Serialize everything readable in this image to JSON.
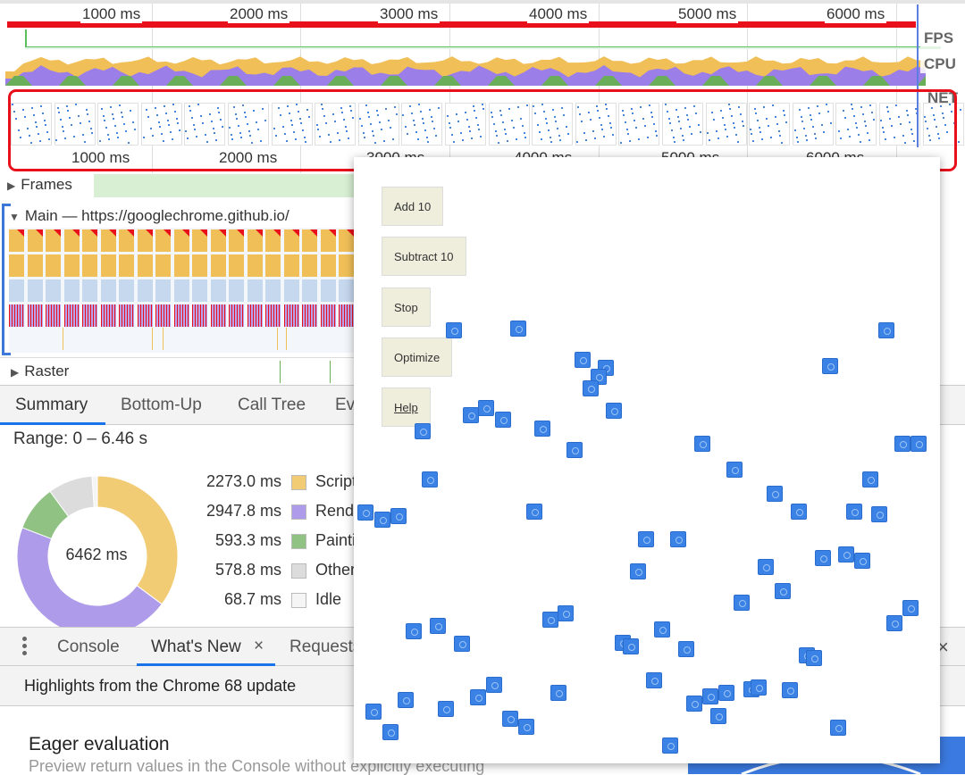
{
  "overview": {
    "ticks": [
      "1000 ms",
      "2000 ms",
      "3000 ms",
      "4000 ms",
      "5000 ms",
      "6000 ms"
    ],
    "labels": {
      "fps": "FPS",
      "cpu": "CPU",
      "net": "NET"
    }
  },
  "tracks": {
    "frames": "Frames",
    "main": "Main — https://googlechrome.github.io/",
    "raster": "Raster"
  },
  "details_tabs": [
    "Summary",
    "Bottom-Up",
    "Call Tree",
    "Event Log"
  ],
  "active_details_tab": "Summary",
  "summary": {
    "range": "Range: 0 – 6.46 s",
    "total": "6462 ms",
    "items": [
      {
        "value": "2273.0 ms",
        "ms": 2273.0,
        "label": "Scripting",
        "color": "#f2cb75"
      },
      {
        "value": "2947.8 ms",
        "ms": 2947.8,
        "label": "Rendering",
        "color": "#ae9bea"
      },
      {
        "value": "593.3 ms",
        "ms": 593.3,
        "label": "Painting",
        "color": "#8fc283"
      },
      {
        "value": "578.8 ms",
        "ms": 578.8,
        "label": "Other",
        "color": "#dcdcdc"
      },
      {
        "value": "68.7 ms",
        "ms": 68.7,
        "label": "Idle",
        "color": "#f5f5f5"
      }
    ]
  },
  "drawer": {
    "tabs": [
      "Console",
      "What's New",
      "Requests"
    ],
    "active": "What's New",
    "close_icon": "×",
    "highlights": "Highlights from the Chrome 68 update",
    "heading": "Eager evaluation",
    "desc": "Preview return values in the Console without explicitly executing"
  },
  "popup": {
    "buttons": [
      "Add 10",
      "Subtract 10",
      "Stop",
      "Optimize",
      "Help"
    ]
  },
  "colors": {
    "accent": "#1a73e8",
    "red": "#e8101a"
  }
}
